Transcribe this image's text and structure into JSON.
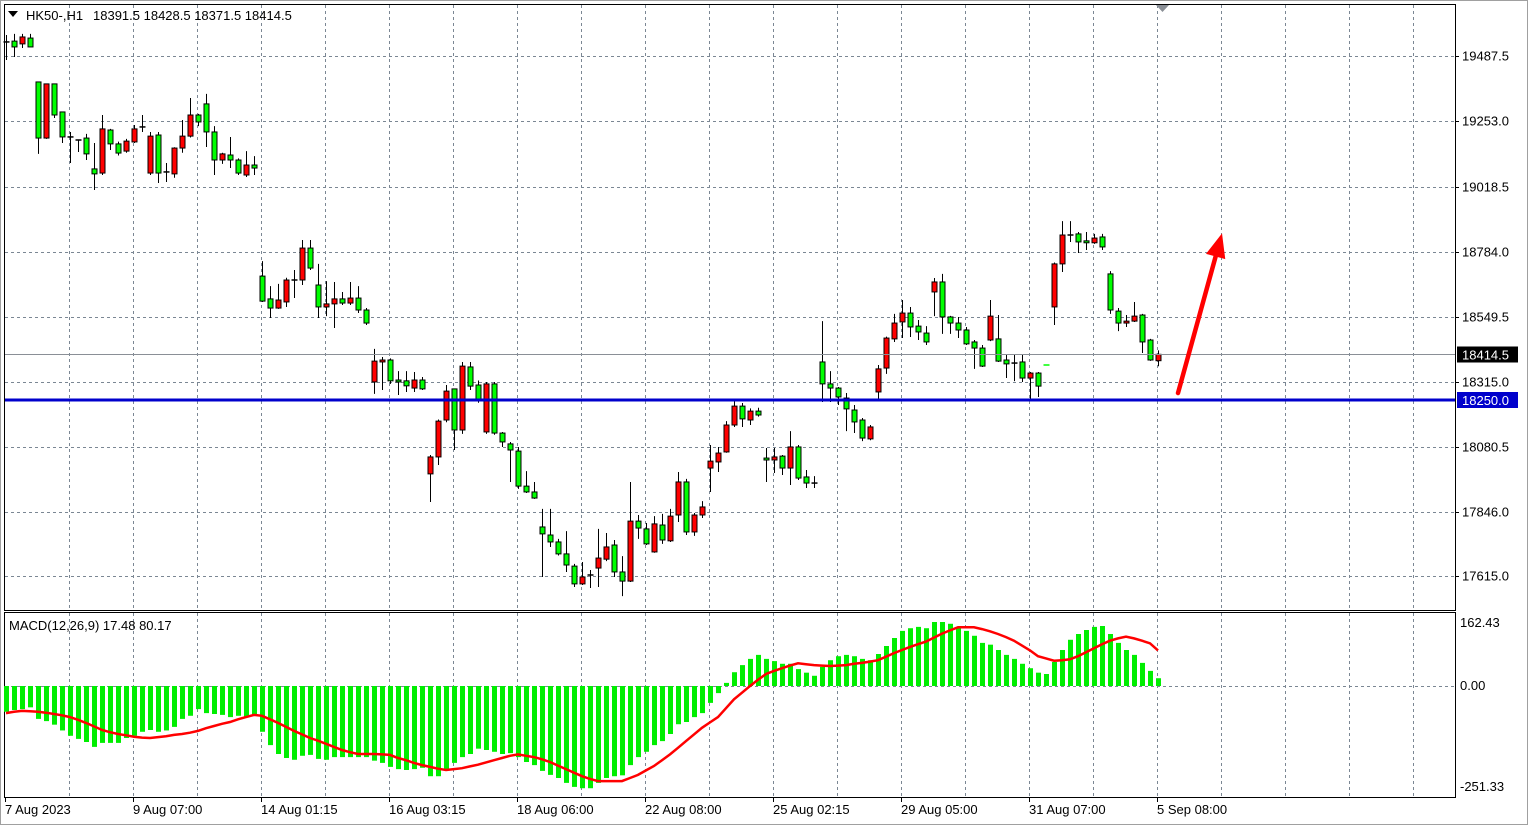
{
  "header": {
    "symbol_timeframe": "HK50-,H1",
    "ohlc_readout": "18391.5 18428.5 18371.5 18414.5"
  },
  "colors": {
    "bull_candle": "#ff0000",
    "bear_candle": "#00ff00",
    "outline": "#000000",
    "grid": "#7b8794",
    "support_line": "#0000cc",
    "arrow": "#ff0000",
    "macd_histogram": "#00ee00",
    "macd_signal": "#ff0000",
    "bid_line": "#8a8f96"
  },
  "chart_data": [
    {
      "type": "candlestick",
      "symbol": "HK50-",
      "timeframe": "H1",
      "grid": true,
      "y_ticks": [
        "19487.5",
        "19253.0",
        "19018.5",
        "18784.0",
        "18549.5",
        "18315.0",
        "18080.5",
        "17846.0",
        "17615.0"
      ],
      "x_ticks": [
        {
          "bar": 0,
          "label": "7 Aug 2023"
        },
        {
          "bar": 16,
          "label": "9 Aug 07:00"
        },
        {
          "bar": 32,
          "label": "14 Aug 01:15"
        },
        {
          "bar": 48,
          "label": "16 Aug 03:15"
        },
        {
          "bar": 64,
          "label": "18 Aug 06:00"
        },
        {
          "bar": 80,
          "label": "22 Aug 08:00"
        },
        {
          "bar": 96,
          "label": "25 Aug 02:15"
        },
        {
          "bar": 112,
          "label": "29 Aug 05:00"
        },
        {
          "bar": 128,
          "label": "31 Aug 07:00"
        },
        {
          "bar": 144,
          "label": "5 Sep 08:00"
        }
      ],
      "current_price": {
        "value": 18414.5,
        "label": "18414.5"
      },
      "horizontal_line": {
        "value": 18250.0,
        "label": "18250.0"
      },
      "arrow_annotation": {
        "from": {
          "bar": 146.5,
          "price": 18275
        },
        "to": {
          "bar": 152,
          "price": 18850
        },
        "direction": "up"
      },
      "ohlc": [
        [
          19539,
          19564,
          19474,
          19535
        ],
        [
          19542,
          19568,
          19485,
          19521
        ],
        [
          19532,
          19568,
          19517,
          19557
        ],
        [
          19553,
          19568,
          19521,
          19521
        ],
        [
          19395,
          19395,
          19136,
          19193
        ],
        [
          19193,
          19388,
          19190,
          19388
        ],
        [
          19388,
          19388,
          19265,
          19276
        ],
        [
          19287,
          19287,
          19175,
          19197
        ],
        [
          19197,
          19215,
          19103,
          19195
        ],
        [
          19186,
          19186,
          19143,
          19184
        ],
        [
          19193,
          19208,
          19114,
          19136
        ],
        [
          19082,
          19175,
          19006,
          19064
        ],
        [
          19067,
          19276,
          19060,
          19226
        ],
        [
          19222,
          19226,
          19150,
          19172
        ],
        [
          19172,
          19180,
          19130,
          19139
        ],
        [
          19146,
          19190,
          19140,
          19182
        ],
        [
          19179,
          19240,
          19175,
          19226
        ],
        [
          19229,
          19276,
          19215,
          19233
        ],
        [
          19067,
          19215,
          19060,
          19200
        ],
        [
          19204,
          19215,
          19031,
          19067
        ],
        [
          19067,
          19103,
          19035,
          19071
        ],
        [
          19064,
          19160,
          19050,
          19157
        ],
        [
          19157,
          19258,
          19140,
          19200
        ],
        [
          19200,
          19337,
          19195,
          19276
        ],
        [
          19276,
          19280,
          19236,
          19251
        ],
        [
          19316,
          19352,
          19161,
          19215
        ],
        [
          19215,
          19236,
          19060,
          19114
        ],
        [
          19114,
          19140,
          19100,
          19136
        ],
        [
          19132,
          19197,
          19085,
          19114
        ],
        [
          19114,
          19120,
          19060,
          19067
        ],
        [
          19060,
          19146,
          19053,
          19096
        ],
        [
          19096,
          19128,
          19060,
          19085
        ],
        [
          18696,
          18750,
          18603,
          18606
        ],
        [
          18614,
          18660,
          18545,
          18581
        ],
        [
          18581,
          18668,
          18578,
          18610
        ],
        [
          18603,
          18690,
          18585,
          18682
        ],
        [
          18678,
          18718,
          18617,
          18682
        ],
        [
          18682,
          18826,
          18664,
          18797
        ],
        [
          18797,
          18826,
          18718,
          18725
        ],
        [
          18664,
          18740,
          18545,
          18585
        ],
        [
          18585,
          18678,
          18552,
          18596
        ],
        [
          18596,
          18675,
          18509,
          18614
        ],
        [
          18614,
          18639,
          18592,
          18599
        ],
        [
          18599,
          18675,
          18592,
          18617
        ],
        [
          18617,
          18660,
          18563,
          18574
        ],
        [
          18574,
          18581,
          18520,
          18527
        ],
        [
          18315,
          18434,
          18272,
          18390
        ],
        [
          18387,
          18405,
          18286,
          18394
        ],
        [
          18394,
          18400,
          18308,
          18319
        ],
        [
          18322,
          18354,
          18268,
          18315
        ],
        [
          18319,
          18354,
          18279,
          18301
        ],
        [
          18293,
          18351,
          18279,
          18322
        ],
        [
          18322,
          18333,
          18286,
          18290
        ],
        [
          17984,
          18052,
          17883,
          18045
        ],
        [
          18045,
          18180,
          18016,
          18174
        ],
        [
          18178,
          18304,
          18170,
          18282
        ],
        [
          18290,
          18290,
          18070,
          18142
        ],
        [
          18142,
          18387,
          18128,
          18372
        ],
        [
          18369,
          18387,
          18286,
          18300
        ],
        [
          18304,
          18320,
          18240,
          18250
        ],
        [
          18135,
          18315,
          18128,
          18308
        ],
        [
          18308,
          18315,
          18125,
          18131
        ],
        [
          18131,
          18135,
          18081,
          18099
        ],
        [
          18092,
          18099,
          17955,
          18070
        ],
        [
          18066,
          18081,
          17930,
          17940
        ],
        [
          17940,
          17994,
          17915,
          17919
        ],
        [
          17919,
          17955,
          17894,
          17897
        ],
        [
          17793,
          17858,
          17613,
          17768
        ],
        [
          17764,
          17858,
          17721,
          17739
        ],
        [
          17739,
          17750,
          17690,
          17696
        ],
        [
          17696,
          17778,
          17631,
          17656
        ],
        [
          17652,
          17660,
          17577,
          17588
        ],
        [
          17588,
          17667,
          17584,
          17613
        ],
        [
          17617,
          17638,
          17573,
          17620
        ],
        [
          17645,
          17786,
          17577,
          17681
        ],
        [
          17677,
          17771,
          17670,
          17721
        ],
        [
          17728,
          17746,
          17613,
          17631
        ],
        [
          17631,
          17688,
          17544,
          17598
        ],
        [
          17598,
          17955,
          17595,
          17814
        ],
        [
          17814,
          17836,
          17750,
          17789
        ],
        [
          17786,
          17807,
          17728,
          17732
        ],
        [
          17703,
          17832,
          17700,
          17804
        ],
        [
          17800,
          17840,
          17732,
          17746
        ],
        [
          17743,
          17858,
          17739,
          17832
        ],
        [
          17836,
          17991,
          17811,
          17955
        ],
        [
          17955,
          17966,
          17764,
          17775
        ],
        [
          17775,
          17843,
          17761,
          17836
        ],
        [
          17836,
          17886,
          17825,
          17865
        ],
        [
          18005,
          18088,
          17919,
          18030
        ],
        [
          18027,
          18081,
          17991,
          18059
        ],
        [
          18063,
          18174,
          18060,
          18160
        ],
        [
          18160,
          18254,
          18153,
          18228
        ],
        [
          18228,
          18239,
          18153,
          18182
        ],
        [
          18178,
          18220,
          18160,
          18210
        ],
        [
          18210,
          18222,
          18190,
          18196
        ],
        [
          18041,
          18077,
          17955,
          18034
        ],
        [
          18034,
          18077,
          17987,
          18045
        ],
        [
          18048,
          18052,
          17980,
          18005
        ],
        [
          18005,
          18138,
          17944,
          18081
        ],
        [
          18081,
          18088,
          17962,
          17969
        ],
        [
          17973,
          17998,
          17933,
          17951
        ],
        [
          17951,
          17976,
          17933,
          17951
        ],
        [
          18387,
          18534,
          18243,
          18308
        ],
        [
          18308,
          18354,
          18243,
          18293
        ],
        [
          18293,
          18297,
          18232,
          18261
        ],
        [
          18257,
          18275,
          18138,
          18218
        ],
        [
          18214,
          18232,
          18131,
          18171
        ],
        [
          18178,
          18185,
          18102,
          18113
        ],
        [
          18110,
          18160,
          18105,
          18153
        ],
        [
          18279,
          18376,
          18246,
          18362
        ],
        [
          18365,
          18478,
          18344,
          18473
        ],
        [
          18470,
          18560,
          18459,
          18527
        ],
        [
          18531,
          18610,
          18473,
          18563
        ],
        [
          18563,
          18585,
          18477,
          18513
        ],
        [
          18516,
          18538,
          18466,
          18495
        ],
        [
          18491,
          18516,
          18448,
          18459
        ],
        [
          18639,
          18689,
          18552,
          18675
        ],
        [
          18675,
          18704,
          18488,
          18549
        ],
        [
          18549,
          18553,
          18488,
          18527
        ],
        [
          18527,
          18549,
          18473,
          18502
        ],
        [
          18502,
          18513,
          18448,
          18452
        ],
        [
          18459,
          18466,
          18362,
          18437
        ],
        [
          18437,
          18448,
          18369,
          18372
        ],
        [
          18466,
          18610,
          18462,
          18552
        ],
        [
          18470,
          18556,
          18387,
          18390
        ],
        [
          18394,
          18412,
          18329,
          18380
        ],
        [
          18383,
          18412,
          18318,
          18383
        ],
        [
          18387,
          18412,
          18315,
          18329
        ],
        [
          18329,
          18351,
          18254,
          18347
        ],
        [
          18347,
          18351,
          18261,
          18300
        ],
        [
          18376,
          18376,
          18376,
          18376
        ],
        [
          18585,
          18745,
          18520,
          18740
        ],
        [
          18740,
          18894,
          18711,
          18844
        ],
        [
          18844,
          18894,
          18819,
          18844
        ],
        [
          18848,
          18855,
          18779,
          18819
        ],
        [
          18823,
          18855,
          18790,
          18816
        ],
        [
          18816,
          18848,
          18812,
          18833
        ],
        [
          18837,
          18848,
          18790,
          18801
        ],
        [
          18704,
          18714,
          18560,
          18574
        ],
        [
          18570,
          18581,
          18498,
          18527
        ],
        [
          18527,
          18556,
          18513,
          18534
        ],
        [
          18534,
          18603,
          18531,
          18552
        ],
        [
          18556,
          18560,
          18419,
          18459
        ],
        [
          18466,
          18470,
          18391,
          18394
        ],
        [
          18391.5,
          18428.5,
          18371.5,
          18414.5
        ]
      ]
    },
    {
      "type": "bar+line",
      "indicator_label": "MACD(12,26,9) 17.48 80.17",
      "y_ticks": [
        "162.43",
        "0.00",
        "-251.33"
      ],
      "ylim": [
        -251.33,
        162.43
      ],
      "histogram": [
        -58,
        -54,
        -52,
        -48,
        -74,
        -79,
        -87,
        -100,
        -112,
        -119,
        -126,
        -137,
        -128,
        -128,
        -128,
        -117,
        -112,
        -103,
        -99,
        -103,
        -100,
        -92,
        -74,
        -67,
        -52,
        -61,
        -63,
        -65,
        -70,
        -67,
        -70,
        -67,
        -103,
        -133,
        -153,
        -162,
        -166,
        -157,
        -155,
        -164,
        -166,
        -160,
        -160,
        -160,
        -160,
        -160,
        -168,
        -173,
        -182,
        -187,
        -189,
        -187,
        -184,
        -203,
        -203,
        -189,
        -173,
        -160,
        -153,
        -141,
        -144,
        -148,
        -153,
        -151,
        -160,
        -171,
        -178,
        -191,
        -200,
        -207,
        -218,
        -227,
        -230,
        -230,
        -218,
        -207,
        -203,
        -201,
        -178,
        -160,
        -148,
        -133,
        -124,
        -108,
        -86,
        -81,
        -70,
        -61,
        -38,
        -16,
        7,
        31,
        47,
        61,
        70,
        61,
        56,
        50,
        50,
        38,
        30,
        23,
        43,
        58,
        67,
        70,
        67,
        61,
        58,
        72,
        90,
        108,
        124,
        130,
        133,
        130,
        144,
        144,
        140,
        130,
        124,
        113,
        97,
        93,
        81,
        70,
        61,
        50,
        40,
        30,
        27,
        54,
        81,
        104,
        117,
        126,
        133,
        135,
        117,
        97,
        81,
        70,
        52,
        34,
        17.48
      ],
      "signal": [
        -61,
        -58,
        -56,
        -57,
        -58,
        -60,
        -63,
        -66,
        -70,
        -76,
        -83,
        -91,
        -99,
        -104,
        -108,
        -111,
        -114,
        -116,
        -117,
        -115,
        -113,
        -110,
        -108,
        -105,
        -101,
        -95,
        -90,
        -85,
        -81,
        -75,
        -70,
        -65,
        -67,
        -75,
        -83,
        -92,
        -101,
        -109,
        -117,
        -123,
        -130,
        -137,
        -144,
        -149,
        -153,
        -153,
        -153,
        -154,
        -155,
        -162,
        -167,
        -173,
        -178,
        -182,
        -186,
        -189,
        -187,
        -185,
        -181,
        -177,
        -172,
        -167,
        -162,
        -157,
        -154,
        -157,
        -160,
        -165,
        -171,
        -179,
        -187,
        -195,
        -203,
        -209,
        -214,
        -214,
        -214,
        -214,
        -207,
        -200,
        -190,
        -180,
        -167,
        -154,
        -139,
        -124,
        -109,
        -94,
        -82,
        -70,
        -50,
        -30,
        -15,
        0,
        14,
        27,
        34,
        40,
        46,
        51,
        49,
        47,
        46,
        45,
        46,
        47,
        50,
        52,
        55,
        58,
        66,
        74,
        81,
        88,
        94,
        100,
        109,
        118,
        125,
        132,
        132,
        132,
        128,
        123,
        117,
        110,
        102,
        91,
        80,
        67,
        62,
        57,
        58,
        60,
        67,
        76,
        85,
        94,
        102,
        107,
        111,
        107,
        102,
        96,
        80.17
      ]
    }
  ]
}
